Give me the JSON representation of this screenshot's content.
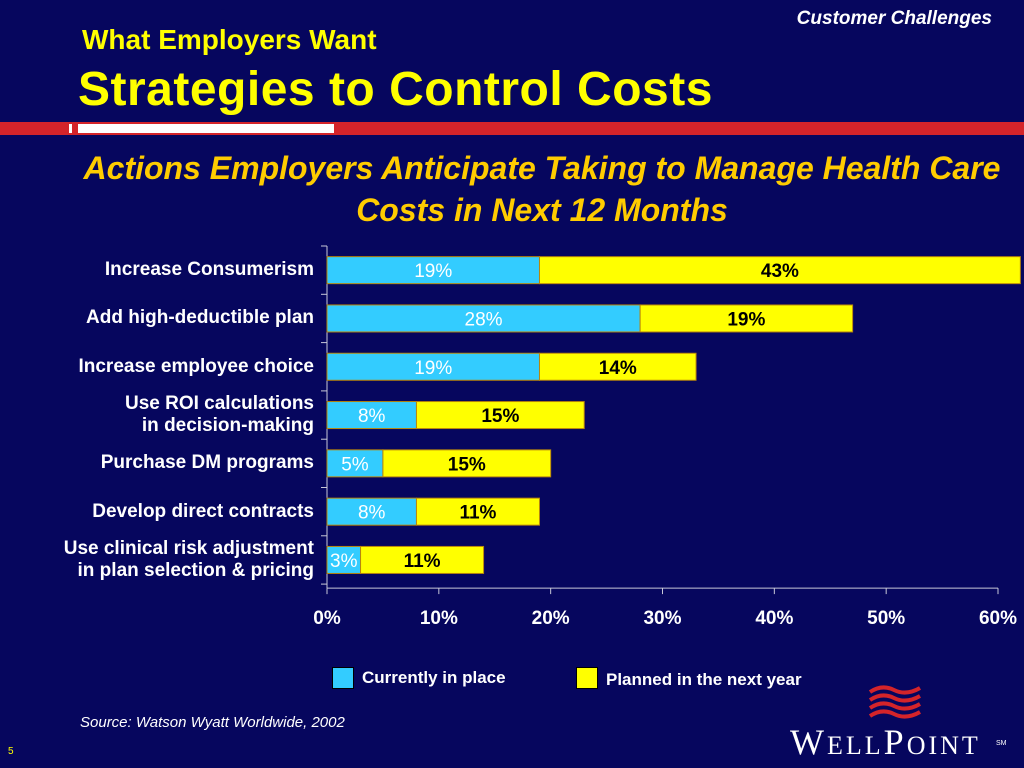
{
  "header": {
    "section": "Customer Challenges",
    "kicker": "What Employers Want",
    "title": "Strategies to Control Costs"
  },
  "chart_data": {
    "type": "bar",
    "orientation": "horizontal",
    "stacked": true,
    "title": "Actions Employers Anticipate Taking to Manage Health Care Costs in Next 12 Months",
    "categories": [
      "Increase Consumerism",
      "Add high-deductible plan",
      "Increase employee choice",
      "Use ROI calculations in decision-making",
      "Purchase DM programs",
      "Develop direct contracts",
      "Use clinical risk adjustment in plan selection & pricing"
    ],
    "series": [
      {
        "name": "Currently in place",
        "color": "#33ccff",
        "values": [
          19,
          28,
          19,
          8,
          5,
          8,
          3
        ]
      },
      {
        "name": "Planned in the next year",
        "color": "#ffff00",
        "values": [
          43,
          19,
          14,
          15,
          15,
          11,
          11
        ]
      }
    ],
    "xlim": [
      0,
      60
    ],
    "xticks": [
      "0%",
      "10%",
      "20%",
      "30%",
      "40%",
      "50%",
      "60%"
    ],
    "xlabel": "",
    "ylabel": "",
    "grid": false,
    "legend_position": "bottom"
  },
  "category_lines": [
    [
      "Increase Consumerism"
    ],
    [
      "Add high-deductible plan"
    ],
    [
      "Increase employee choice"
    ],
    [
      "Use ROI calculations",
      "in decision-making"
    ],
    [
      "Purchase DM programs"
    ],
    [
      "Develop direct contracts"
    ],
    [
      "Use clinical risk adjustment",
      "in plan selection & pricing"
    ]
  ],
  "footer": {
    "source": "Source: Watson Wyatt Worldwide, 2002",
    "page_number": "5",
    "logo": "WellPoint",
    "logo_tm": "SM"
  }
}
